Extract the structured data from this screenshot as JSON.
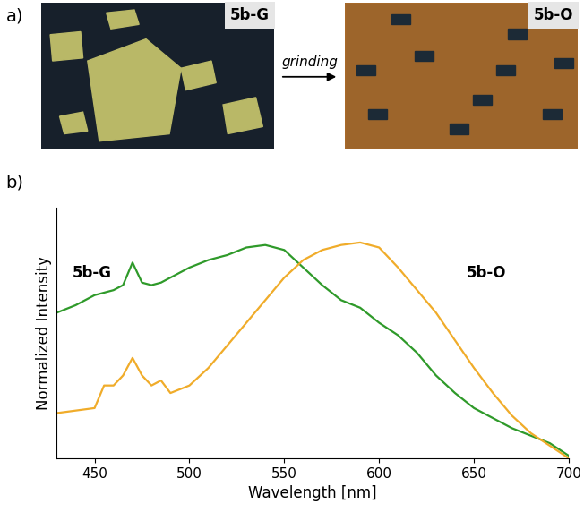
{
  "panel_a": {
    "label": "a)",
    "images": [
      {
        "label": "5b-G"
      },
      {
        "label": "5b-O"
      }
    ],
    "arrow_label": "grinding"
  },
  "chart_data": {
    "type": "line",
    "panel_label": "b)",
    "x_label": "Wavelength [nm]",
    "y_label": "Normalized Intensity",
    "x": [
      430,
      440,
      450,
      455,
      460,
      465,
      470,
      475,
      480,
      485,
      490,
      500,
      510,
      520,
      530,
      540,
      550,
      560,
      570,
      580,
      590,
      600,
      610,
      620,
      630,
      640,
      650,
      660,
      670,
      680,
      690,
      700
    ],
    "series": [
      {
        "name": "5b-G",
        "color": "#2f9a2a",
        "values": [
          0.58,
          0.61,
          0.65,
          0.66,
          0.67,
          0.69,
          0.78,
          0.7,
          0.69,
          0.7,
          0.72,
          0.76,
          0.79,
          0.81,
          0.84,
          0.85,
          0.83,
          0.76,
          0.69,
          0.63,
          0.6,
          0.54,
          0.49,
          0.42,
          0.33,
          0.26,
          0.2,
          0.16,
          0.12,
          0.09,
          0.06,
          0.01
        ]
      },
      {
        "name": "5b-O",
        "color": "#f0ac2a",
        "values": [
          0.18,
          0.19,
          0.2,
          0.29,
          0.29,
          0.33,
          0.4,
          0.33,
          0.29,
          0.31,
          0.26,
          0.29,
          0.36,
          0.45,
          0.54,
          0.63,
          0.72,
          0.79,
          0.83,
          0.85,
          0.86,
          0.84,
          0.76,
          0.67,
          0.58,
          0.47,
          0.36,
          0.26,
          0.17,
          0.1,
          0.05,
          0.0
        ]
      }
    ],
    "xlim": [
      430,
      700
    ],
    "ylim": [
      0,
      1
    ],
    "xticks": [
      450,
      500,
      550,
      600,
      650,
      700
    ],
    "tick_labels": "x"
  }
}
